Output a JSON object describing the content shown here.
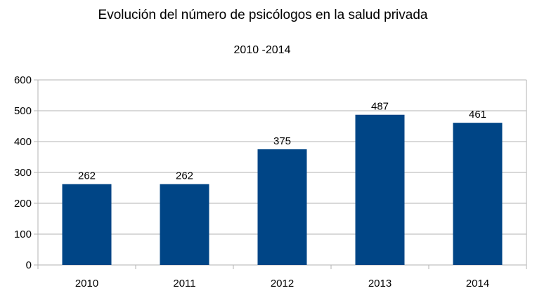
{
  "chart_data": {
    "type": "bar",
    "title": "Evolución del número de psicólogos en la salud privada",
    "subtitle": "2010 -2014",
    "categories": [
      "2010",
      "2011",
      "2012",
      "2013",
      "2014"
    ],
    "series": [
      {
        "values": [
          262,
          262,
          375,
          487,
          461
        ]
      }
    ],
    "data_labels": [
      "262",
      "262",
      "375",
      "487",
      "461"
    ],
    "y_ticks": [
      "0",
      "100",
      "200",
      "300",
      "400",
      "500",
      "600"
    ],
    "ylim": [
      0,
      600
    ],
    "xlabel": "",
    "ylabel": "",
    "grid": true,
    "legend": "none",
    "colors": {
      "bar": "#004586",
      "grid": "#b3b3b3",
      "axis": "#b3b3b3"
    }
  }
}
